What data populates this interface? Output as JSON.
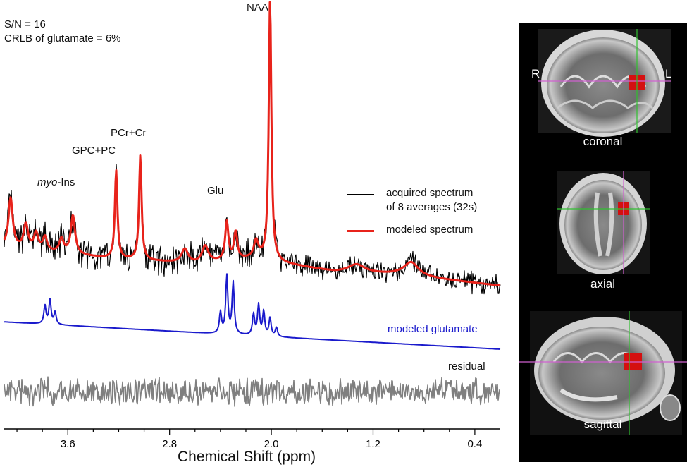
{
  "annotations": {
    "sn": "S/N = 16",
    "crlb": "CRLB of glutamate = 6%"
  },
  "peaks": [
    {
      "label": "NAA",
      "ppm": 2.01
    },
    {
      "label": "PCr+Cr",
      "ppm": 3.03
    },
    {
      "label": "GPC+PC",
      "ppm": 3.22
    },
    {
      "label": "myo-Ins",
      "ppm": 3.56,
      "italic_part": "myo",
      "rest": "-Ins"
    },
    {
      "label": "Glu",
      "ppm": 2.35
    }
  ],
  "legend": {
    "acquired": "acquired spectrum",
    "acquired2": "of 8 averages (32s)",
    "modeled": "modeled spectrum",
    "glutamate": "modeled glutamate",
    "residual": "residual"
  },
  "colors": {
    "acquired": "#000000",
    "modeled": "#e8231b",
    "glutamate": "#1a1acc",
    "residual": "#7f7f7f"
  },
  "chart_data": {
    "type": "line",
    "xlabel": "Chemical Shift (ppm)",
    "xlim": [
      4.1,
      0.2
    ],
    "x_reversed": true,
    "xticks": [
      3.6,
      2.8,
      2.0,
      1.2,
      0.4
    ],
    "xtick_labels": [
      "3.6",
      "2.8",
      "2.0",
      "1.2",
      "0.4"
    ],
    "series": [
      {
        "name": "acquired spectrum of 8 averages (32s)",
        "description": "noisy measured MRS spectrum"
      },
      {
        "name": "modeled spectrum",
        "baseline": [
          [
            4.1,
            0.14
          ],
          [
            3.3,
            0.1
          ],
          [
            2.6,
            0.08
          ],
          [
            2.1,
            0.1
          ],
          [
            1.9,
            0.08
          ],
          [
            1.5,
            0.05
          ],
          [
            1.0,
            0.04
          ],
          [
            0.2,
            0.0
          ]
        ],
        "peaks": [
          {
            "ppm": 4.05,
            "height": 0.18,
            "width": 0.02
          },
          {
            "ppm": 3.93,
            "height": 0.09,
            "width": 0.02
          },
          {
            "ppm": 3.85,
            "height": 0.06,
            "width": 0.02
          },
          {
            "ppm": 3.78,
            "height": 0.05,
            "width": 0.02
          },
          {
            "ppm": 3.65,
            "height": 0.05,
            "width": 0.02
          },
          {
            "ppm": 3.56,
            "height": 0.14,
            "width": 0.02
          },
          {
            "ppm": 3.22,
            "height": 0.32,
            "width": 0.012
          },
          {
            "ppm": 3.03,
            "height": 0.38,
            "width": 0.012
          },
          {
            "ppm": 2.68,
            "height": 0.05,
            "width": 0.03
          },
          {
            "ppm": 2.52,
            "height": 0.06,
            "width": 0.03
          },
          {
            "ppm": 2.35,
            "height": 0.14,
            "width": 0.015
          },
          {
            "ppm": 2.28,
            "height": 0.1,
            "width": 0.015
          },
          {
            "ppm": 2.12,
            "height": 0.06,
            "width": 0.02
          },
          {
            "ppm": 2.01,
            "height": 0.95,
            "width": 0.012
          },
          {
            "ppm": 1.33,
            "height": 0.03,
            "width": 0.08
          },
          {
            "ppm": 0.9,
            "height": 0.05,
            "width": 0.07
          }
        ]
      },
      {
        "name": "modeled glutamate",
        "baseline": [
          [
            4.1,
            0.09
          ],
          [
            2.4,
            0.05
          ],
          [
            0.2,
            0.0
          ]
        ],
        "peaks": [
          {
            "ppm": 3.78,
            "height": 0.06,
            "width": 0.01
          },
          {
            "ppm": 3.74,
            "height": 0.08,
            "width": 0.01
          },
          {
            "ppm": 3.7,
            "height": 0.04,
            "width": 0.01
          },
          {
            "ppm": 2.4,
            "height": 0.07,
            "width": 0.01
          },
          {
            "ppm": 2.35,
            "height": 0.19,
            "width": 0.01
          },
          {
            "ppm": 2.3,
            "height": 0.17,
            "width": 0.01
          },
          {
            "ppm": 2.14,
            "height": 0.07,
            "width": 0.01
          },
          {
            "ppm": 2.1,
            "height": 0.1,
            "width": 0.01
          },
          {
            "ppm": 2.06,
            "height": 0.08,
            "width": 0.01
          },
          {
            "ppm": 2.01,
            "height": 0.06,
            "width": 0.01
          },
          {
            "ppm": 1.96,
            "height": 0.03,
            "width": 0.01
          }
        ]
      },
      {
        "name": "residual",
        "description": "noise around zero"
      }
    ]
  },
  "mri": {
    "views": [
      "coronal",
      "axial",
      "sagittal"
    ],
    "left_label": "R",
    "right_label": "L"
  }
}
